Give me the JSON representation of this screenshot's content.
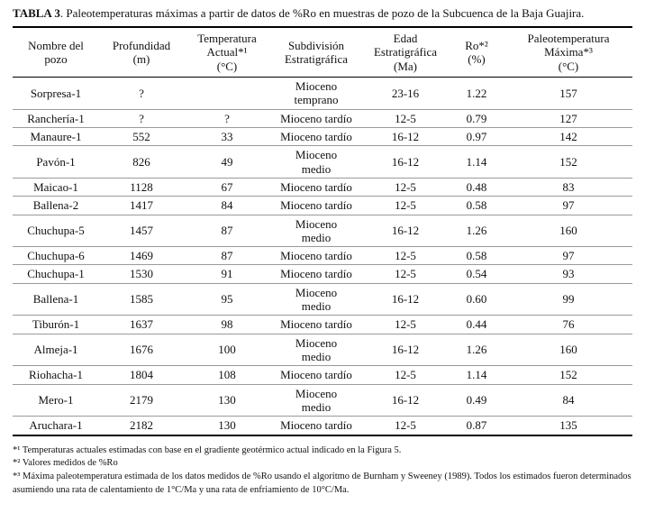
{
  "caption": {
    "label": "TABLA 3",
    "text": ". Paleotemperaturas máximas a partir de datos de %Ro en muestras de pozo de la Subcuenca de la Baja Guajira."
  },
  "table": {
    "headers": [
      "Nombre del\npozo",
      "Profundidad\n(m)",
      "Temperatura\nActual*¹\n(°C)",
      "Subdivisión\nEstratigráfica",
      "Edad\nEstratigráfica\n(Ma)",
      "Ro*²\n(%)",
      "Paleotemperatura\nMáxima*³\n(°C)"
    ],
    "rows": [
      [
        "Sorpresa-1",
        "?",
        "",
        "Mioceno\ntemprano",
        "23-16",
        "1.22",
        "157"
      ],
      [
        "Ranchería-1",
        "?",
        "?",
        "Mioceno tardío",
        "12-5",
        "0.79",
        "127"
      ],
      [
        "Manaure-1",
        "552",
        "33",
        "Mioceno tardío",
        "16-12",
        "0.97",
        "142"
      ],
      [
        "Pavón-1",
        "826",
        "49",
        "Mioceno\nmedio",
        "16-12",
        "1.14",
        "152"
      ],
      [
        "Maicao-1",
        "1128",
        "67",
        "Mioceno tardío",
        "12-5",
        "0.48",
        "83"
      ],
      [
        "Ballena-2",
        "1417",
        "84",
        "Mioceno tardío",
        "12-5",
        "0.58",
        "97"
      ],
      [
        "Chuchupa-5",
        "1457",
        "87",
        "Mioceno\nmedio",
        "16-12",
        "1.26",
        "160"
      ],
      [
        "Chuchupa-6",
        "1469",
        "87",
        "Mioceno tardío",
        "12-5",
        "0.58",
        "97"
      ],
      [
        "Chuchupa-1",
        "1530",
        "91",
        "Mioceno tardío",
        "12-5",
        "0.54",
        "93"
      ],
      [
        "Ballena-1",
        "1585",
        "95",
        "Mioceno\nmedio",
        "16-12",
        "0.60",
        "99"
      ],
      [
        "Tiburón-1",
        "1637",
        "98",
        "Mioceno tardío",
        "12-5",
        "0.44",
        "76"
      ],
      [
        "Almeja-1",
        "1676",
        "100",
        "Mioceno\nmedio",
        "16-12",
        "1.26",
        "160"
      ],
      [
        "Riohacha-1",
        "1804",
        "108",
        "Mioceno tardío",
        "12-5",
        "1.14",
        "152"
      ],
      [
        "Mero-1",
        "2179",
        "130",
        "Mioceno\nmedio",
        "16-12",
        "0.49",
        "84"
      ],
      [
        "Aruchara-1",
        "2182",
        "130",
        "Mioceno tardío",
        "12-5",
        "0.87",
        "135"
      ]
    ]
  },
  "footnotes": [
    "*¹ Temperaturas actuales estimadas con base en el gradiente geotérmico actual indicado en la Figura 5.",
    "*² Valores medidos de %Ro",
    "*³ Máxima paleotemperatura estimada de los datos medidos de %Ro usando el algoritmo de Burnham y Sweeney (1989). Todos los estimados fueron determinados asumiendo una rata de calentamiento de 1°C/Ma y una rata de enfriamiento de 10°C/Ma."
  ]
}
